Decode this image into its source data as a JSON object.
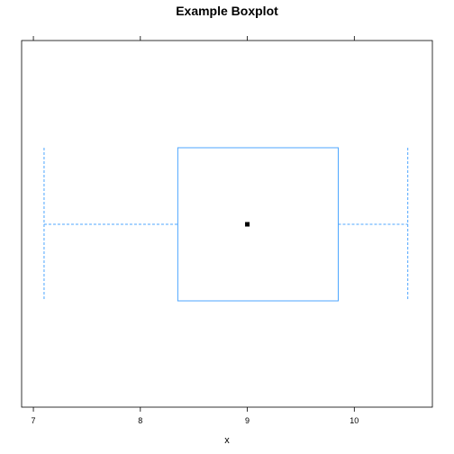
{
  "chart_data": {
    "type": "boxplot",
    "title": "Example Boxplot",
    "xlabel": "x",
    "ylabel": "",
    "xlim": [
      6.89,
      10.73
    ],
    "x_ticks": [
      7,
      8,
      9,
      10
    ],
    "x_tick_labels": [
      "7",
      "8",
      "9",
      "10"
    ],
    "box": {
      "min": 7.1,
      "q1": 8.35,
      "median": 9.0,
      "q3": 9.85,
      "max": 10.5
    },
    "colors": {
      "box": "#4DA6FF",
      "whisker": "#4DA6FF",
      "median_dot": "#000000",
      "frame": "#000000"
    },
    "grid": false
  }
}
